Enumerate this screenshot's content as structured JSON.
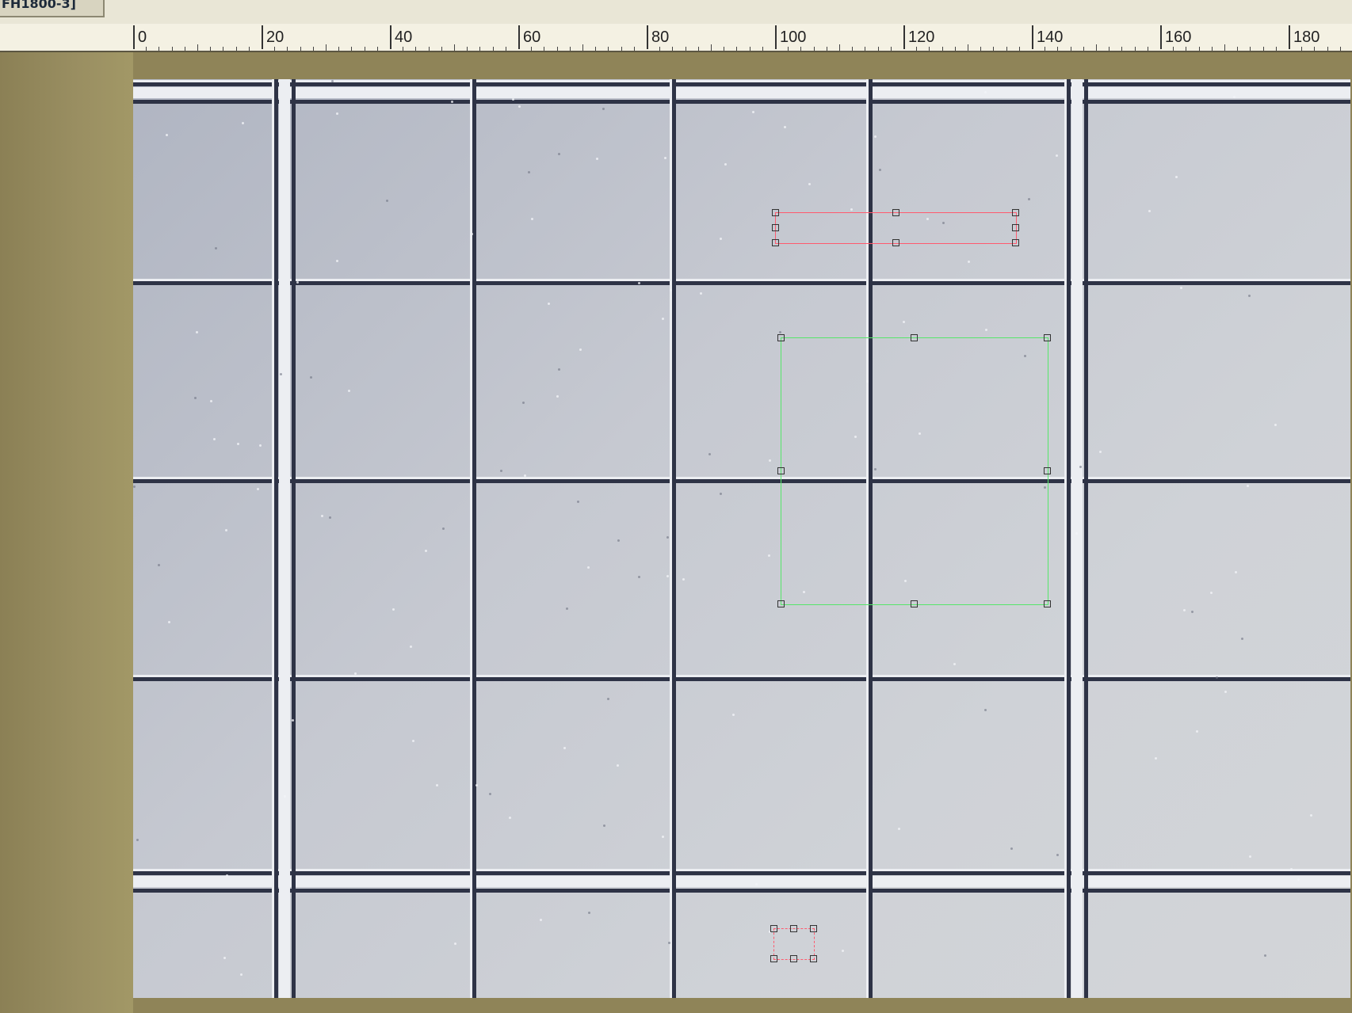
{
  "window": {
    "title_tab": "FH1800-3]"
  },
  "ruler": {
    "labels": [
      "0",
      "20",
      "40",
      "60",
      "80",
      "100",
      "120",
      "140",
      "160",
      "180"
    ]
  },
  "rois": [
    {
      "label": "",
      "color": "#ff5a6e"
    },
    {
      "label": "",
      "color": "#56e66a"
    },
    {
      "label": "",
      "color": "#ff5a6e"
    }
  ]
}
